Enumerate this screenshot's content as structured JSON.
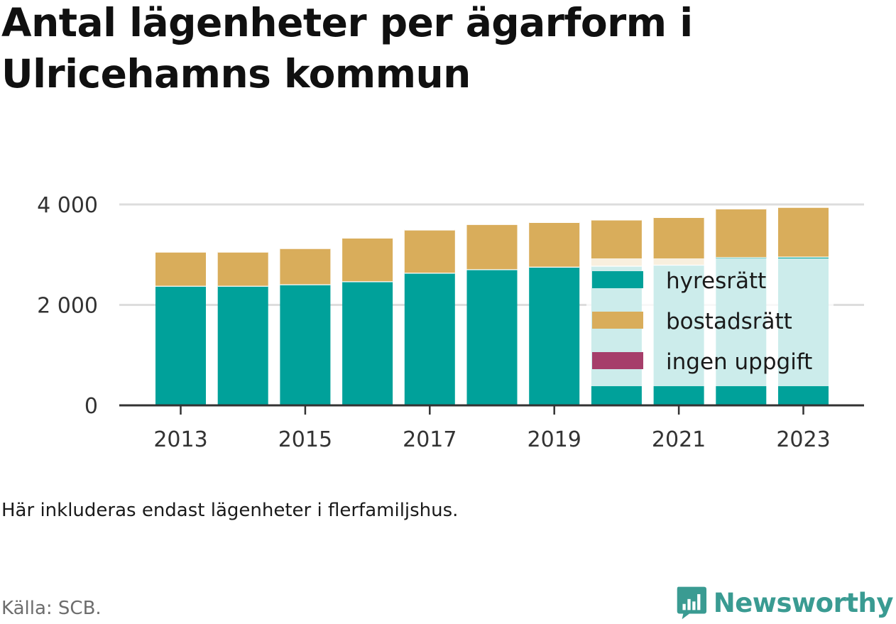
{
  "title": "Antal lägenheter per ägarform i Ulricehamns kommun",
  "note": "Här inkluderas endast lägenheter i flerfamiljshus.",
  "source": "Källa: SCB.",
  "logo_text": "Newsworthy",
  "colors": {
    "hyresratt": "#00a19a",
    "bostadsratt": "#d9ad5b",
    "ingen_uppgift": "#a63e6a",
    "gridline": "#dddddd",
    "axis": "#333333"
  },
  "chart_data": {
    "type": "bar",
    "stacked": true,
    "categories": [
      "2013",
      "2014",
      "2015",
      "2016",
      "2017",
      "2018",
      "2019",
      "2020",
      "2021",
      "2022",
      "2023"
    ],
    "x_tick_labels": [
      "2013",
      "2015",
      "2017",
      "2019",
      "2021",
      "2023"
    ],
    "series": [
      {
        "name": "hyresrätt",
        "color": "#00a19a",
        "values": [
          2380,
          2380,
          2410,
          2470,
          2640,
          2710,
          2760,
          2780,
          2800,
          2950,
          2960
        ]
      },
      {
        "name": "bostadsrätt",
        "color": "#d9ad5b",
        "values": [
          680,
          680,
          720,
          870,
          860,
          900,
          890,
          920,
          950,
          970,
          990
        ]
      },
      {
        "name": "ingen uppgift",
        "color": "#a63e6a",
        "values": [
          0,
          0,
          0,
          0,
          0,
          0,
          0,
          0,
          0,
          0,
          0
        ]
      }
    ],
    "ylim": [
      0,
      4000
    ],
    "y_ticks": [
      0,
      2000,
      4000
    ],
    "y_tick_labels": [
      "0",
      "2 000",
      "4 000"
    ],
    "grid": true,
    "legend_position": "inside-right"
  }
}
